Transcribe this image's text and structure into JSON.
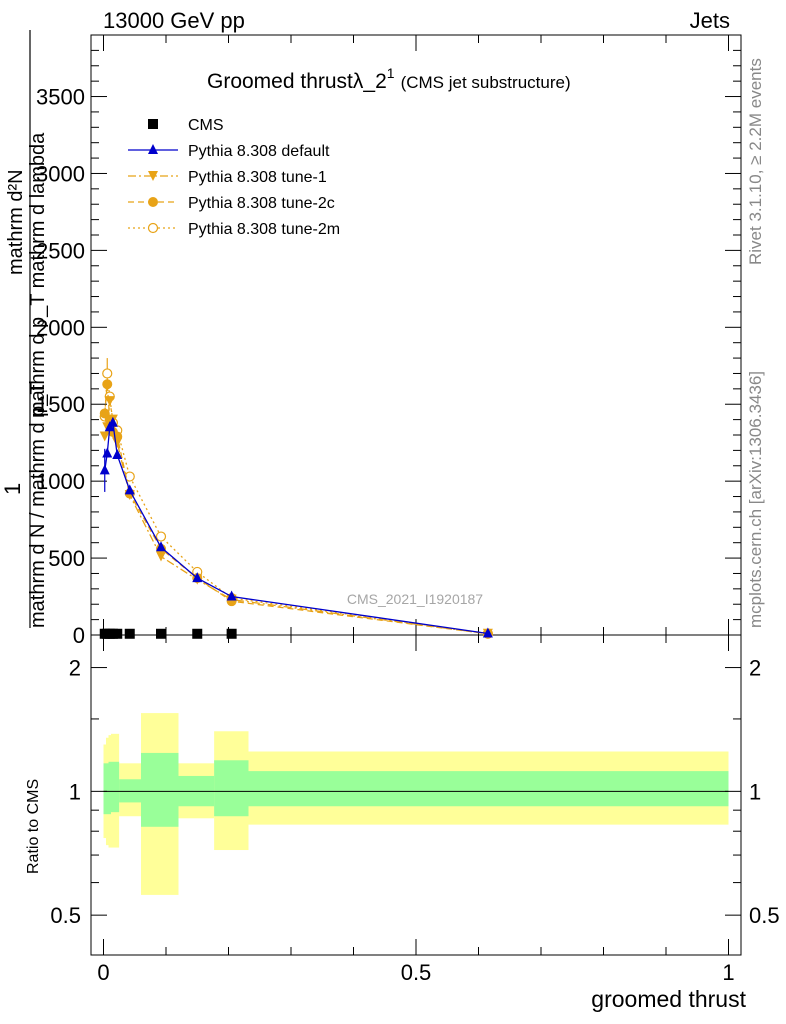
{
  "header": {
    "left": "13000 GeV pp",
    "right": "Jets"
  },
  "plot_title": {
    "main": "Groomed thrustλ_2",
    "superscript": "1",
    "suffix": "(CMS jet substructure)"
  },
  "y_axis_text": {
    "numerator": "mathrm d²N",
    "numerator_line2": "mathrm d p_T mathrm d lambda",
    "one": "1",
    "denominator": "mathrm d N / mathrm d p_T"
  },
  "side_text": {
    "rivet": "Rivet 3.1.10, ≥ 2.2M events",
    "mcplots": "mcplots.cern.ch [arXiv:1306.3436]"
  },
  "watermark": "CMS_2021_I1920187",
  "ratio_label": "Ratio to CMS",
  "x_label": "groomed thrust",
  "colors": {
    "cms": "#000000",
    "default": "#0000cc",
    "tune": "#e8a317",
    "tune2m": "#e8a317",
    "band_inner": "#99ff99",
    "band_outer": "#ffff99"
  },
  "chart_data": [
    {
      "type": "scatter",
      "panel": "main",
      "xlim": [
        -0.02,
        1.02
      ],
      "ylim": [
        0,
        3900
      ],
      "x_ticks": [
        0,
        0.5,
        1
      ],
      "y_ticks": [
        {
          "value": 0,
          "label": "0"
        },
        {
          "value": 500,
          "label": "500"
        },
        {
          "value": 1000,
          "label": "1000"
        },
        {
          "value": 1500,
          "label": "1500"
        },
        {
          "value": 2000,
          "label": "2000"
        },
        {
          "value": 2500,
          "label": "2500"
        },
        {
          "value": 3000,
          "label": "3000"
        },
        {
          "value": 3500,
          "label": "3500"
        }
      ],
      "legend_position": "top-left",
      "series": [
        {
          "name": "CMS",
          "marker": "square",
          "line": "none",
          "x": [
            0.002,
            0.006,
            0.01,
            0.015,
            0.022,
            0.042,
            0.092,
            0.15,
            0.205
          ],
          "y": [
            8,
            8,
            8,
            8,
            8,
            8,
            8,
            8,
            8
          ]
        },
        {
          "name": "Pythia 8.308 default",
          "marker": "triangle-up",
          "line": "solid",
          "x": [
            0.002,
            0.006,
            0.01,
            0.015,
            0.022,
            0.042,
            0.092,
            0.15,
            0.205,
            0.615
          ],
          "y": [
            1070,
            1180,
            1350,
            1380,
            1170,
            940,
            570,
            370,
            250,
            10
          ],
          "yerr": [
            140,
            0,
            0,
            0,
            0,
            0,
            0,
            0,
            0,
            0
          ]
        },
        {
          "name": "Pythia 8.308 tune-1",
          "marker": "triangle-down",
          "line": "dash-dot",
          "x": [
            0.002,
            0.006,
            0.01,
            0.015,
            0.022,
            0.042,
            0.092,
            0.15,
            0.205,
            0.615
          ],
          "y": [
            1290,
            1350,
            1520,
            1400,
            1250,
            910,
            510,
            360,
            230,
            8
          ]
        },
        {
          "name": "Pythia 8.308 tune-2c",
          "marker": "circle",
          "line": "dashed",
          "x": [
            0.002,
            0.006,
            0.01,
            0.015,
            0.022,
            0.042,
            0.092,
            0.15,
            0.205,
            0.615
          ],
          "y": [
            1440,
            1630,
            1400,
            1320,
            1290,
            920,
            560,
            370,
            220,
            8
          ]
        },
        {
          "name": "Pythia 8.308 tune-2m",
          "marker": "circle-open",
          "line": "dotted",
          "x": [
            0.002,
            0.006,
            0.01,
            0.015,
            0.022,
            0.042,
            0.092,
            0.15,
            0.205,
            0.615
          ],
          "y": [
            1420,
            1700,
            1550,
            1380,
            1330,
            1030,
            640,
            410,
            240,
            9
          ],
          "yerr": [
            0,
            100,
            0,
            0,
            0,
            0,
            0,
            0,
            0,
            0
          ]
        }
      ]
    },
    {
      "type": "area",
      "panel": "ratio",
      "xlim": [
        -0.02,
        1.02
      ],
      "ylim": [
        0.4,
        2.4
      ],
      "log_y": true,
      "x_ticks": [
        {
          "value": 0,
          "label": "0"
        },
        {
          "value": 0.5,
          "label": "0.5"
        },
        {
          "value": 1,
          "label": "1"
        }
      ],
      "y_ticks": [
        {
          "value": 0.5,
          "label": "0.5"
        },
        {
          "value": 1,
          "label": "1"
        },
        {
          "value": 2,
          "label": "2"
        }
      ],
      "bins": [
        {
          "x0": 0.0,
          "x1": 0.004,
          "inner": [
            0.88,
            1.17
          ],
          "outer": [
            0.77,
            1.3
          ]
        },
        {
          "x0": 0.004,
          "x1": 0.008,
          "inner": [
            0.88,
            1.17
          ],
          "outer": [
            0.74,
            1.35
          ]
        },
        {
          "x0": 0.008,
          "x1": 0.012,
          "inner": [
            0.88,
            1.18
          ],
          "outer": [
            0.73,
            1.37
          ]
        },
        {
          "x0": 0.012,
          "x1": 0.025,
          "inner": [
            0.89,
            1.18
          ],
          "outer": [
            0.73,
            1.38
          ]
        },
        {
          "x0": 0.025,
          "x1": 0.06,
          "inner": [
            0.94,
            1.07
          ],
          "outer": [
            0.87,
            1.17
          ]
        },
        {
          "x0": 0.06,
          "x1": 0.12,
          "inner": [
            0.82,
            1.24
          ],
          "outer": [
            0.56,
            1.55
          ]
        },
        {
          "x0": 0.12,
          "x1": 0.177,
          "inner": [
            0.92,
            1.09
          ],
          "outer": [
            0.86,
            1.17
          ]
        },
        {
          "x0": 0.177,
          "x1": 0.232,
          "inner": [
            0.87,
            1.19
          ],
          "outer": [
            0.72,
            1.4
          ]
        },
        {
          "x0": 0.232,
          "x1": 1.0,
          "inner": [
            0.92,
            1.12
          ],
          "outer": [
            0.83,
            1.25
          ]
        }
      ],
      "reference_line": 1
    }
  ]
}
